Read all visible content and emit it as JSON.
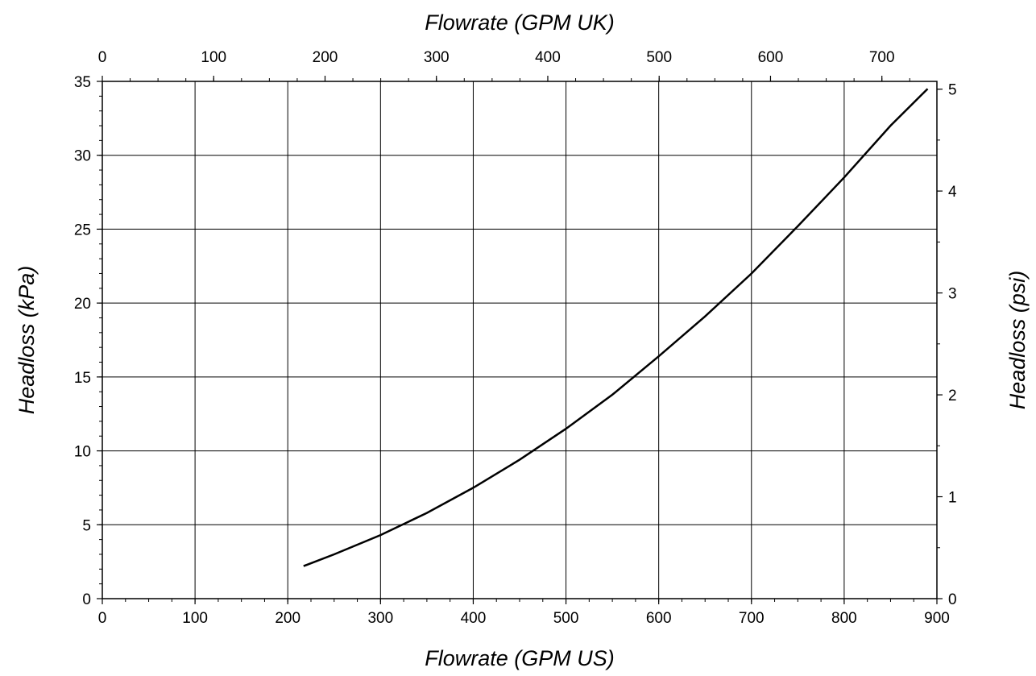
{
  "chart_data": {
    "type": "line",
    "xlabel_bottom": "Flowrate (GPM US)",
    "xlabel_top": "Flowrate (GPM UK)",
    "ylabel_left": "Headloss (kPa)",
    "ylabel_right": "Headloss (psi)",
    "xlim": [
      0,
      900
    ],
    "ylim": [
      0,
      35
    ],
    "x2lim": [
      0,
      749.4
    ],
    "y2lim": [
      0,
      5.076
    ],
    "grid": true,
    "x_ticks": [
      "0",
      "100",
      "200",
      "300",
      "400",
      "500",
      "600",
      "700",
      "800",
      "900"
    ],
    "y_ticks": [
      "0",
      "5",
      "10",
      "15",
      "20",
      "25",
      "30",
      "35"
    ],
    "x2_ticks": [
      "0",
      "100",
      "200",
      "300",
      "400",
      "500",
      "600",
      "700"
    ],
    "y2_ticks": [
      "0",
      "1",
      "2",
      "3",
      "4",
      "5"
    ],
    "series": [
      {
        "x": [
          217,
          250,
          300,
          350,
          400,
          450,
          500,
          550,
          600,
          650,
          700,
          750,
          800,
          850,
          890
        ],
        "y": [
          2.2,
          3.0,
          4.3,
          5.8,
          7.5,
          9.4,
          11.5,
          13.8,
          16.4,
          19.1,
          22.0,
          25.2,
          28.5,
          32.0,
          34.5
        ]
      }
    ]
  }
}
